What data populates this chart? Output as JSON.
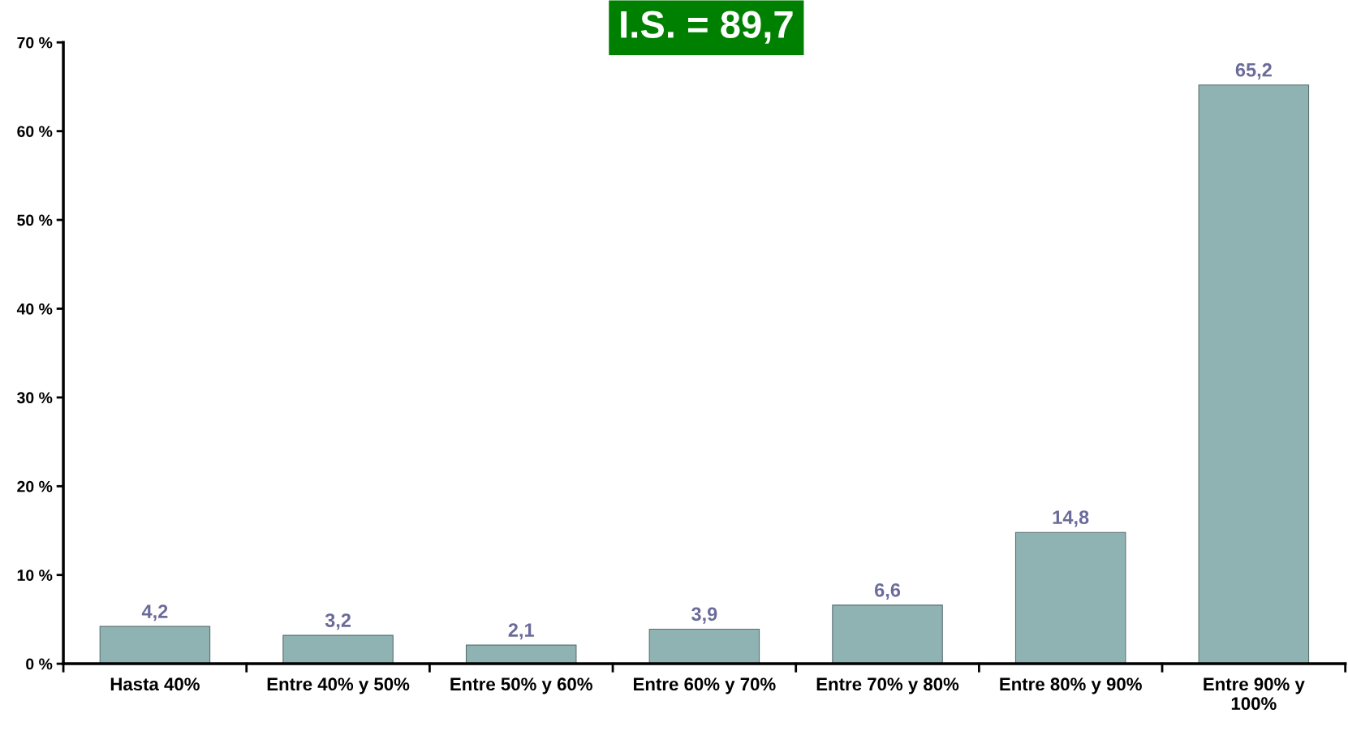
{
  "chart_data": {
    "type": "bar",
    "title": "I.S. = 89,7",
    "categories": [
      "Hasta 40%",
      "Entre 40% y 50%",
      "Entre 50% y 60%",
      "Entre 60% y 70%",
      "Entre 70% y 80%",
      "Entre 80% y 90%",
      "Entre 90% y\n100%"
    ],
    "values": [
      4.2,
      3.2,
      2.1,
      3.9,
      6.6,
      14.8,
      65.2
    ],
    "value_labels": [
      "4,2",
      "3,2",
      "2,1",
      "3,9",
      "6,6",
      "14,8",
      "65,2"
    ],
    "color": "#8fb3b3",
    "ylim": [
      0,
      70
    ],
    "yticks": [
      {
        "value": 0,
        "label": "0 %"
      },
      {
        "value": 10,
        "label": "10 %"
      },
      {
        "value": 20,
        "label": "20 %"
      },
      {
        "value": 30,
        "label": "30 %"
      },
      {
        "value": 40,
        "label": "40 %"
      },
      {
        "value": 50,
        "label": "50 %"
      },
      {
        "value": 60,
        "label": "60 %"
      },
      {
        "value": 70,
        "label": "70 %"
      }
    ],
    "grid": false
  }
}
